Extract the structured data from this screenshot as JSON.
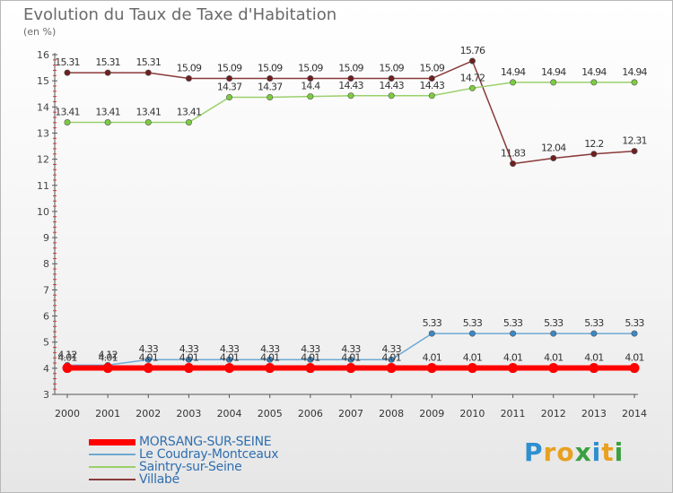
{
  "title": "Evolution du Taux de Taxe d'Habitation",
  "subtitle": "(en %)",
  "logo": {
    "letters": [
      "P",
      "r",
      "o",
      "x",
      "i",
      "t",
      "i"
    ],
    "colors": [
      "#2f8fcf",
      "#e8a020",
      "#e8a020",
      "#3aa040",
      "#2f8fcf",
      "#e8a020",
      "#3aa040"
    ]
  },
  "chart_data": {
    "type": "line",
    "categories": [
      "2000",
      "2001",
      "2002",
      "2003",
      "2004",
      "2005",
      "2006",
      "2007",
      "2008",
      "2009",
      "2010",
      "2011",
      "2012",
      "2013",
      "2014"
    ],
    "ylim": [
      3,
      16
    ],
    "yticks": [
      "3",
      "4",
      "5",
      "6",
      "7",
      "8",
      "9",
      "10",
      "11",
      "12",
      "13",
      "14",
      "15",
      "16"
    ],
    "series": [
      {
        "name": "MORSANG-SUR-SEINE",
        "color": "#ff0000",
        "pointColor": "#ff0000",
        "width": 6,
        "values": [
          4.01,
          4.01,
          4.01,
          4.01,
          4.01,
          4.01,
          4.01,
          4.01,
          4.01,
          4.01,
          4.01,
          4.01,
          4.01,
          4.01,
          4.01
        ],
        "labels": [
          "4.01",
          "4.01",
          "4.01",
          "4.01",
          "4.01",
          "4.01",
          "4.01",
          "4.01",
          "4.01",
          "4.01",
          "4.01",
          "4.01",
          "4.01",
          "4.01",
          "4.01"
        ]
      },
      {
        "name": "Le Coudray-Montceaux",
        "color": "#6ea9d4",
        "pointColor": "#3a87c4",
        "width": 1.5,
        "values": [
          4.12,
          4.12,
          4.33,
          4.33,
          4.33,
          4.33,
          4.33,
          4.33,
          4.33,
          5.33,
          5.33,
          5.33,
          5.33,
          5.33,
          5.33
        ],
        "labels": [
          "4.12",
          "4.12",
          "4.33",
          "4.33",
          "4.33",
          "4.33",
          "4.33",
          "4.33",
          "4.33",
          "5.33",
          "5.33",
          "5.33",
          "5.33",
          "5.33",
          "5.33"
        ]
      },
      {
        "name": "Saintry-sur-Seine",
        "color": "#9ad06a",
        "pointColor": "#7ccc40",
        "width": 1.5,
        "values": [
          13.41,
          13.41,
          13.41,
          13.41,
          14.37,
          14.37,
          14.4,
          14.43,
          14.43,
          14.43,
          14.72,
          14.94,
          14.94,
          14.94,
          14.94
        ],
        "labels": [
          "13.41",
          "13.41",
          "13.41",
          "13.41",
          "14.37",
          "14.37",
          "14.4",
          "14.43",
          "14.43",
          "14.43",
          "14.72",
          "14.94",
          "14.94",
          "14.94",
          "14.94"
        ]
      },
      {
        "name": "Villabé",
        "color": "#8a3a3a",
        "pointColor": "#6e2020",
        "width": 1.5,
        "values": [
          15.31,
          15.31,
          15.31,
          15.09,
          15.09,
          15.09,
          15.09,
          15.09,
          15.09,
          15.09,
          15.76,
          11.83,
          12.04,
          12.2,
          12.31
        ],
        "labels": [
          "15.31",
          "15.31",
          "15.31",
          "15.09",
          "15.09",
          "15.09",
          "15.09",
          "15.09",
          "15.09",
          "15.09",
          "15.76",
          "11.83",
          "12.04",
          "12.2",
          "12.31"
        ]
      }
    ]
  }
}
